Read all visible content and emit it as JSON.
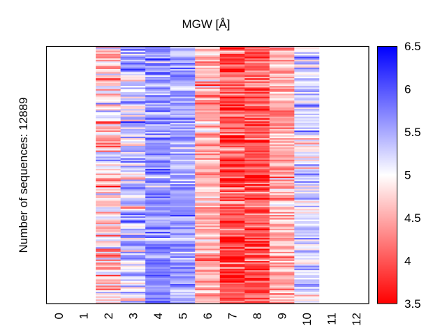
{
  "chart_data": {
    "type": "heatmap",
    "title": "MGW [Å]",
    "xlabel": "",
    "ylabel": "Number of sequences: 12889",
    "x_categories": [
      "0",
      "1",
      "2",
      "3",
      "4",
      "5",
      "6",
      "7",
      "8",
      "9",
      "10",
      "11",
      "12"
    ],
    "n_rows": 12889,
    "colormap": "bwr",
    "colormap_colors": {
      "low": "#ff0000",
      "mid": "#ffffff",
      "high": "#0000ff"
    },
    "colorbar": {
      "range": [
        3.5,
        6.5
      ],
      "ticks": [
        3.5,
        4,
        4.5,
        5,
        5.5,
        6,
        6.5
      ],
      "tick_labels": [
        "3.5",
        "4",
        "4.5",
        "5",
        "5.5",
        "6",
        "6.5"
      ]
    },
    "columns": [
      {
        "position": 0,
        "has_data": false
      },
      {
        "position": 1,
        "has_data": false
      },
      {
        "position": 2,
        "has_data": true,
        "approx_mean": 4.8,
        "approx_spread": 0.45
      },
      {
        "position": 3,
        "has_data": true,
        "approx_mean": 5.3,
        "approx_spread": 0.45
      },
      {
        "position": 4,
        "has_data": true,
        "approx_mean": 5.6,
        "approx_spread": 0.3
      },
      {
        "position": 5,
        "has_data": true,
        "approx_mean": 5.55,
        "approx_spread": 0.25
      },
      {
        "position": 6,
        "has_data": true,
        "approx_mean": 4.55,
        "approx_spread": 0.3
      },
      {
        "position": 7,
        "has_data": true,
        "approx_mean": 3.95,
        "approx_spread": 0.35
      },
      {
        "position": 8,
        "has_data": true,
        "approx_mean": 4.0,
        "approx_spread": 0.3
      },
      {
        "position": 9,
        "has_data": true,
        "approx_mean": 4.5,
        "approx_spread": 0.3
      },
      {
        "position": 10,
        "has_data": true,
        "approx_mean": 5.2,
        "approx_spread": 0.35
      },
      {
        "position": 11,
        "has_data": false
      },
      {
        "position": 12,
        "has_data": false
      }
    ],
    "grid": false,
    "legend": "colorbar-right"
  }
}
